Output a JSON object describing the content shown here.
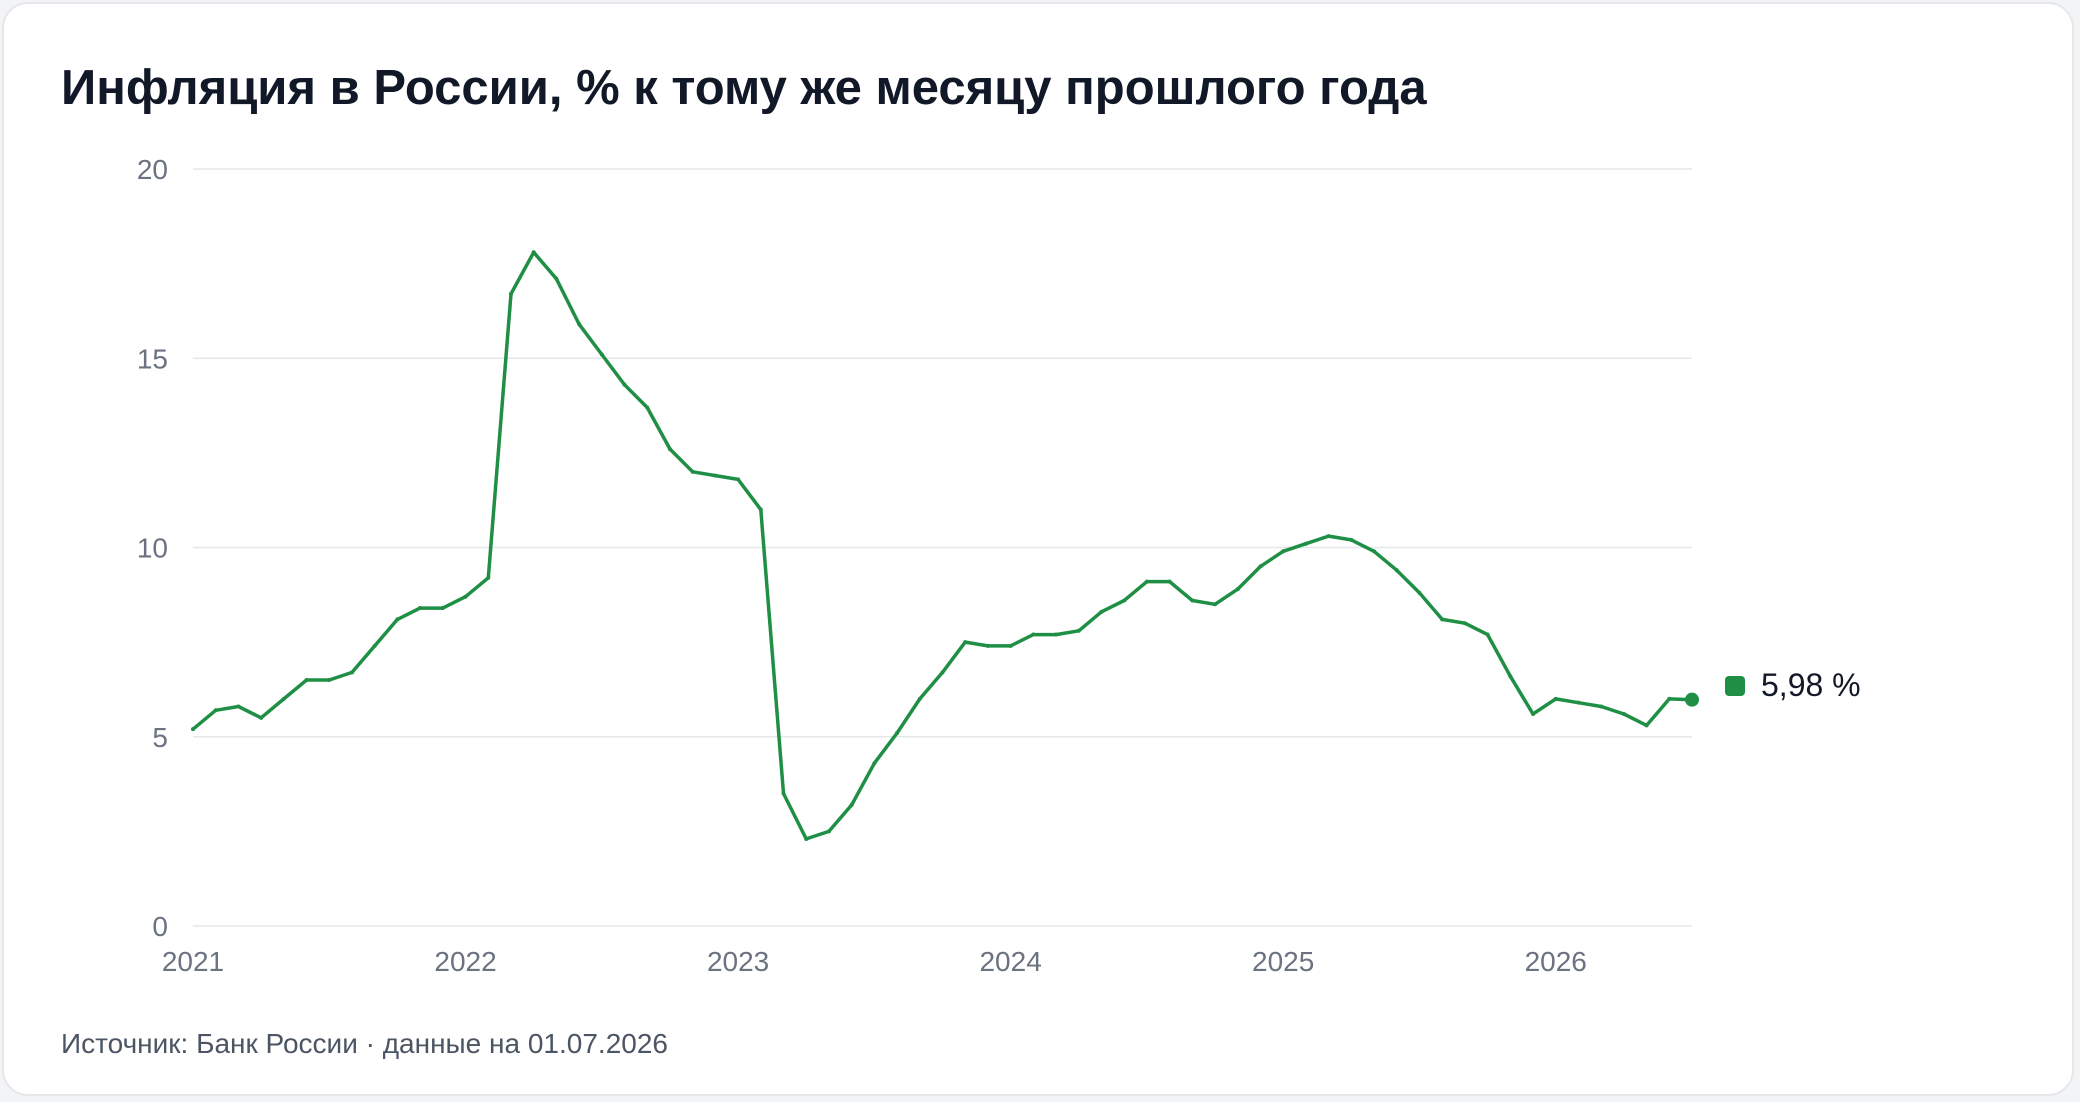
{
  "title": "Инфляция в России, % к тому же месяцу прошлого года",
  "source": "Источник: Банк России · данные на 01.07.2026",
  "colors": {
    "series": "#1f8f45",
    "grid": "#e5e7eb",
    "tick": "#6b7280"
  },
  "chart_data": {
    "type": "line",
    "title": "Инфляция в России, % к тому же месяцу прошлого года",
    "xlabel": "",
    "ylabel": "",
    "ylim": [
      0,
      20
    ],
    "yticks": [
      0,
      5,
      10,
      15,
      20
    ],
    "xlim": [
      "2021-01",
      "2026-07"
    ],
    "xticks": [
      "2021",
      "2022",
      "2023",
      "2024",
      "2025",
      "2026"
    ],
    "grid": true,
    "last_value_label": "5,98 %",
    "series": [
      {
        "values": [
          [
            "2021-01",
            5.2
          ],
          [
            "2021-02",
            5.7
          ],
          [
            "2021-03",
            5.8
          ],
          [
            "2021-04",
            5.5
          ],
          [
            "2021-05",
            6.0
          ],
          [
            "2021-06",
            6.5
          ],
          [
            "2021-07",
            6.5
          ],
          [
            "2021-08",
            6.7
          ],
          [
            "2021-09",
            7.4
          ],
          [
            "2021-10",
            8.1
          ],
          [
            "2021-11",
            8.4
          ],
          [
            "2021-12",
            8.4
          ],
          [
            "2022-01",
            8.7
          ],
          [
            "2022-02",
            9.2
          ],
          [
            "2022-03",
            16.7
          ],
          [
            "2022-04",
            17.8
          ],
          [
            "2022-05",
            17.1
          ],
          [
            "2022-06",
            15.9
          ],
          [
            "2022-07",
            15.1
          ],
          [
            "2022-08",
            14.3
          ],
          [
            "2022-09",
            13.7
          ],
          [
            "2022-10",
            12.6
          ],
          [
            "2022-11",
            12.0
          ],
          [
            "2022-12",
            11.9
          ],
          [
            "2023-01",
            11.8
          ],
          [
            "2023-02",
            11.0
          ],
          [
            "2023-03",
            3.5
          ],
          [
            "2023-04",
            2.3
          ],
          [
            "2023-05",
            2.5
          ],
          [
            "2023-06",
            3.2
          ],
          [
            "2023-07",
            4.3
          ],
          [
            "2023-08",
            5.1
          ],
          [
            "2023-09",
            6.0
          ],
          [
            "2023-10",
            6.7
          ],
          [
            "2023-11",
            7.5
          ],
          [
            "2023-12",
            7.4
          ],
          [
            "2024-01",
            7.4
          ],
          [
            "2024-02",
            7.7
          ],
          [
            "2024-03",
            7.7
          ],
          [
            "2024-04",
            7.8
          ],
          [
            "2024-05",
            8.3
          ],
          [
            "2024-06",
            8.6
          ],
          [
            "2024-07",
            9.1
          ],
          [
            "2024-08",
            9.1
          ],
          [
            "2024-09",
            8.6
          ],
          [
            "2024-10",
            8.5
          ],
          [
            "2024-11",
            8.9
          ],
          [
            "2024-12",
            9.5
          ],
          [
            "2025-01",
            9.9
          ],
          [
            "2025-02",
            10.1
          ],
          [
            "2025-03",
            10.3
          ],
          [
            "2025-04",
            10.2
          ],
          [
            "2025-05",
            9.9
          ],
          [
            "2025-06",
            9.4
          ],
          [
            "2025-07",
            8.8
          ],
          [
            "2025-08",
            8.1
          ],
          [
            "2025-09",
            8.0
          ],
          [
            "2025-10",
            7.7
          ],
          [
            "2025-11",
            6.6
          ],
          [
            "2025-12",
            5.6
          ],
          [
            "2026-01",
            6.0
          ],
          [
            "2026-02",
            5.9
          ],
          [
            "2026-03",
            5.8
          ],
          [
            "2026-04",
            5.6
          ],
          [
            "2026-05",
            5.3
          ],
          [
            "2026-06",
            6.0
          ],
          [
            "2026-07",
            5.98
          ]
        ]
      }
    ]
  }
}
